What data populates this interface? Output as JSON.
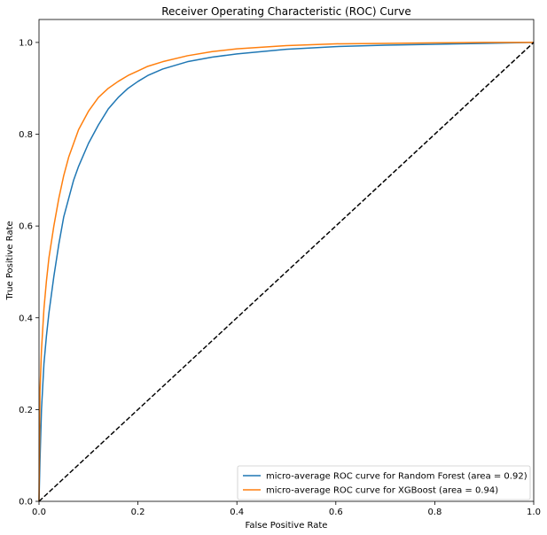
{
  "chart_data": {
    "type": "line",
    "title": "Receiver Operating Characteristic (ROC) Curve",
    "xlabel": "False Positive Rate",
    "ylabel": "True Positive Rate",
    "xlim": [
      0.0,
      1.0
    ],
    "ylim": [
      0.0,
      1.05
    ],
    "xticks": [
      "0.0",
      "0.2",
      "0.4",
      "0.6",
      "0.8",
      "1.0"
    ],
    "yticks": [
      "0.0",
      "0.2",
      "0.4",
      "0.6",
      "0.8",
      "1.0"
    ],
    "grid": false,
    "legend_position": "lower-right",
    "series": [
      {
        "name": "micro-average ROC curve for Random Forest (area = 0.92)",
        "color": "#1f77b4",
        "style": "solid",
        "x": [
          0.0,
          0.002,
          0.005,
          0.01,
          0.015,
          0.02,
          0.03,
          0.04,
          0.05,
          0.06,
          0.07,
          0.08,
          0.1,
          0.12,
          0.14,
          0.16,
          0.18,
          0.2,
          0.22,
          0.25,
          0.3,
          0.35,
          0.4,
          0.5,
          0.6,
          0.7,
          0.8,
          0.9,
          1.0
        ],
        "y": [
          0.0,
          0.09,
          0.2,
          0.3,
          0.36,
          0.41,
          0.49,
          0.56,
          0.62,
          0.66,
          0.7,
          0.73,
          0.78,
          0.82,
          0.855,
          0.88,
          0.9,
          0.915,
          0.928,
          0.942,
          0.958,
          0.968,
          0.975,
          0.985,
          0.991,
          0.994,
          0.996,
          0.998,
          1.0
        ]
      },
      {
        "name": "micro-average ROC curve for XGBoost (area = 0.94)",
        "color": "#ff7f0e",
        "style": "solid",
        "x": [
          0.0,
          0.002,
          0.005,
          0.01,
          0.015,
          0.02,
          0.03,
          0.04,
          0.05,
          0.06,
          0.07,
          0.08,
          0.1,
          0.12,
          0.14,
          0.16,
          0.18,
          0.2,
          0.22,
          0.25,
          0.3,
          0.35,
          0.4,
          0.5,
          0.6,
          0.7,
          0.8,
          0.9,
          1.0
        ],
        "y": [
          0.0,
          0.24,
          0.33,
          0.42,
          0.48,
          0.53,
          0.6,
          0.66,
          0.71,
          0.75,
          0.78,
          0.81,
          0.85,
          0.88,
          0.9,
          0.915,
          0.928,
          0.938,
          0.948,
          0.958,
          0.971,
          0.98,
          0.986,
          0.993,
          0.997,
          0.998,
          0.999,
          1.0,
          1.0
        ]
      },
      {
        "name": "chance",
        "color": "#000000",
        "style": "dashed",
        "x": [
          0.0,
          1.0
        ],
        "y": [
          0.0,
          1.0
        ]
      }
    ]
  }
}
